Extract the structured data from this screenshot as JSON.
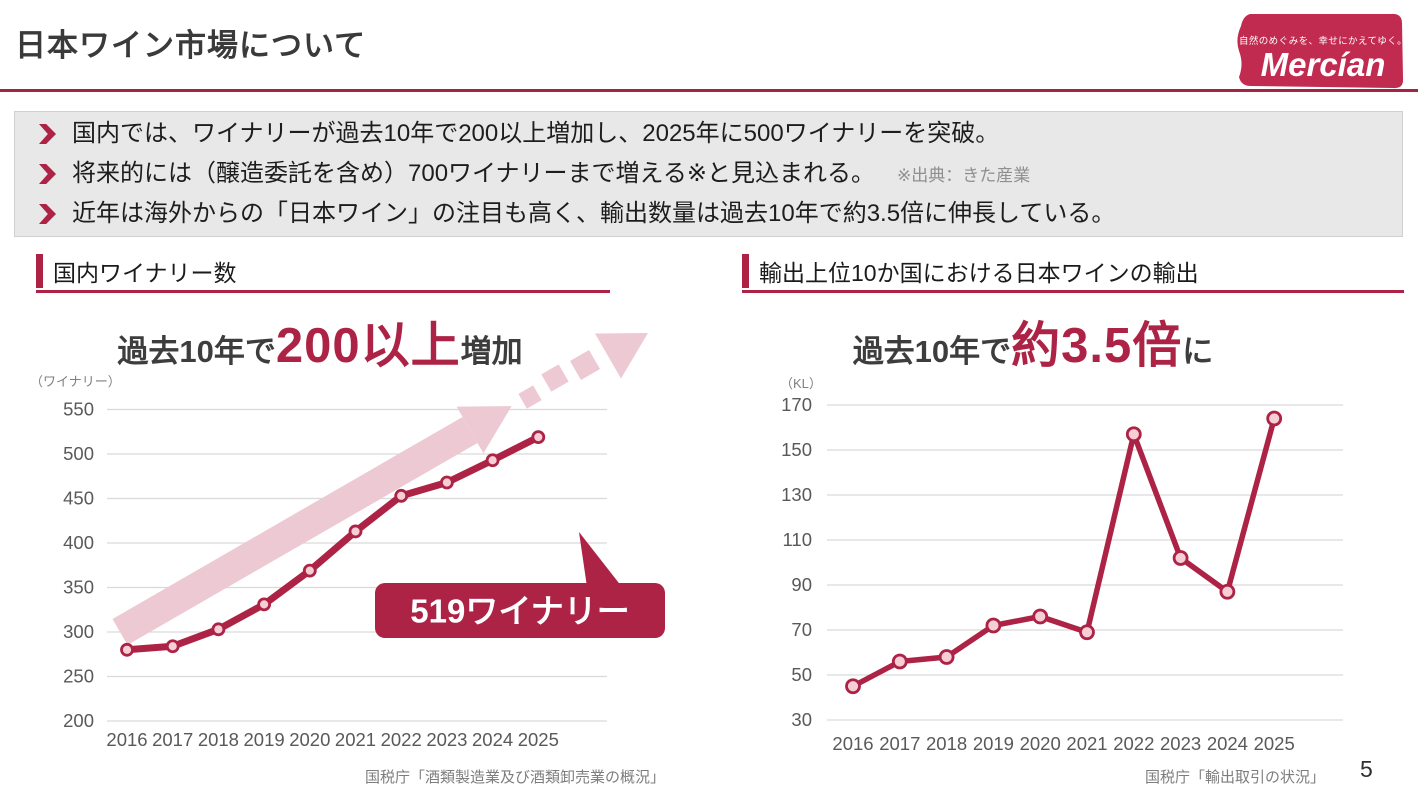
{
  "page": {
    "title": "日本ワイン市場について",
    "page_number": "5"
  },
  "logo": {
    "tagline": "自然のめぐみを、幸せにかえてゆく。",
    "brand": "Mercían"
  },
  "bullets": [
    {
      "text": "国内では、ワイナリーが過去10年で200以上増加し、2025年に500ワイナリーを突破。",
      "note": ""
    },
    {
      "text": "将来的には（醸造委託を含め）700ワイナリーまで増える※と見込まれる。",
      "note": "※出典：きた産業"
    },
    {
      "text": "近年は海外からの「日本ワイン」の注目も高く、輸出数量は過去10年で約3.5倍に伸長している。",
      "note": ""
    }
  ],
  "left_panel": {
    "section_title": "国内ワイナリー数",
    "headline": {
      "prefix": "過去10年で",
      "highlight": "200以上",
      "suffix": "増加"
    },
    "source": "国税庁「酒類製造業及び酒類卸売業の概況」"
  },
  "right_panel": {
    "section_title": "輸出上位10か国における日本ワインの輸出",
    "headline": {
      "prefix": "過去10年で",
      "highlight": "約3.5倍",
      "suffix": "に"
    },
    "source": "国税庁「輸出取引の状況」"
  },
  "colors": {
    "crimson": "#ad2346",
    "pink": "#edc9d4",
    "marker_fill": "#f6ced6",
    "grid": "#d9d9d9",
    "tick": "#595959",
    "logo_red": "#c22b50",
    "unit": "#808080"
  },
  "chart_data": [
    {
      "type": "line",
      "title": "国内ワイナリー数",
      "unit_label": "（ワイナリー）",
      "x": [
        "2016",
        "2017",
        "2018",
        "2019",
        "2020",
        "2021",
        "2022",
        "2023",
        "2024",
        "2025"
      ],
      "values": [
        280,
        284,
        303,
        331,
        369,
        413,
        453,
        468,
        493,
        519
      ],
      "ylim": [
        200,
        550
      ],
      "yticks": [
        550,
        500,
        450,
        400,
        350,
        300,
        250,
        200
      ],
      "annotation": "519ワイナリー",
      "trend_arrow": true,
      "grid": true,
      "legend": "none"
    },
    {
      "type": "line",
      "title": "輸出上位10か国における日本ワインの輸出",
      "unit_label": "（KL）",
      "x": [
        "2016",
        "2017",
        "2018",
        "2019",
        "2020",
        "2021",
        "2022",
        "2023",
        "2024",
        "2025"
      ],
      "values": [
        45,
        56,
        58,
        72,
        76,
        69,
        157,
        102,
        87,
        164
      ],
      "ylim": [
        30,
        170
      ],
      "yticks": [
        170,
        150,
        130,
        110,
        90,
        70,
        50,
        30
      ],
      "grid": true,
      "legend": "none"
    }
  ]
}
